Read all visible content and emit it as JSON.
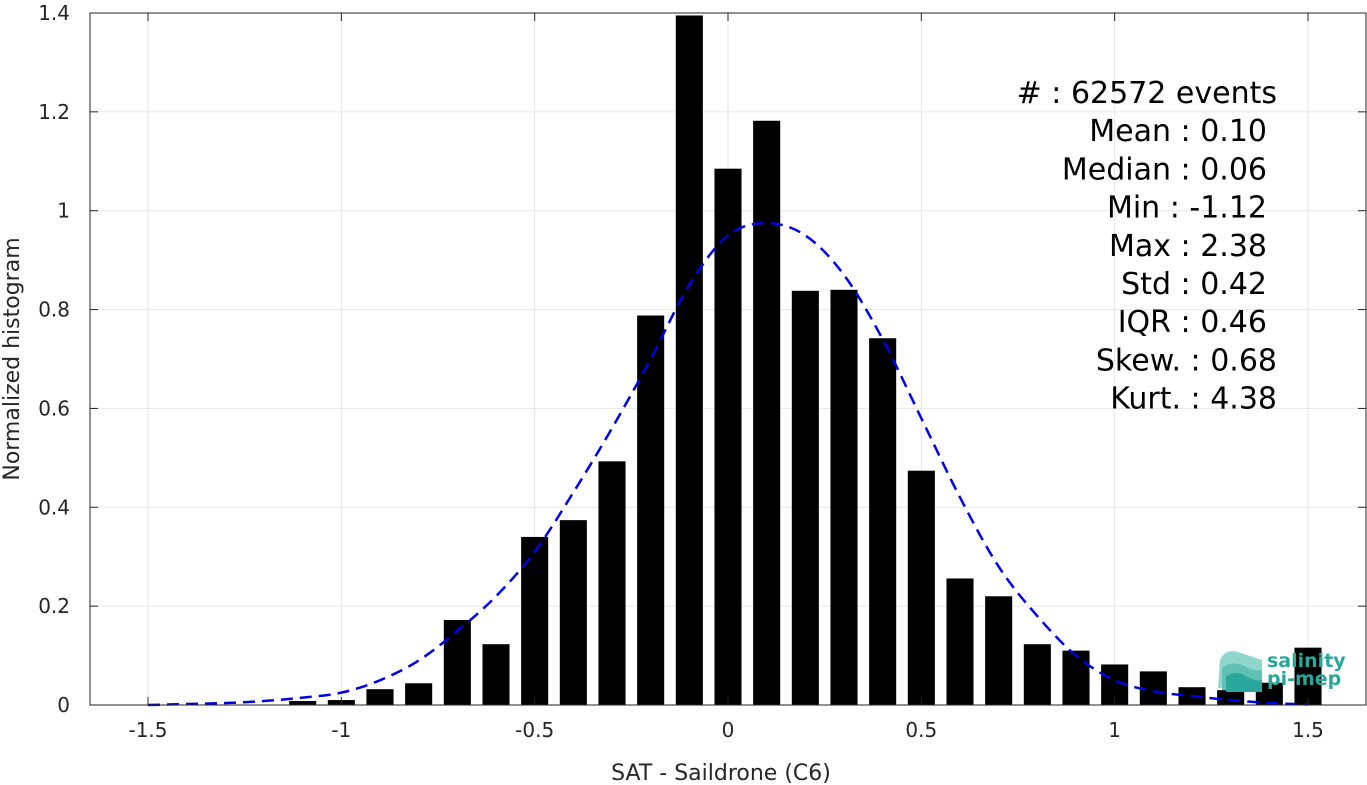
{
  "chart_data": {
    "type": "bar",
    "xlabel": "SAT - Saildrone (C6)",
    "ylabel": "Normalized histogram",
    "xlim": [
      -1.65,
      1.65
    ],
    "ylim": [
      0,
      1.4
    ],
    "grid": true,
    "x_ticks": [
      "-1.5",
      "-1",
      "-0.5",
      "0",
      "0.5",
      "1",
      "1.5"
    ],
    "x_tick_values": [
      -1.5,
      -1,
      -0.5,
      0,
      0.5,
      1,
      1.5
    ],
    "y_ticks": [
      "0",
      "0.2",
      "0.4",
      "0.6",
      "0.8",
      "1",
      "1.2",
      "1.4"
    ],
    "y_tick_values": [
      0,
      0.2,
      0.4,
      0.6,
      0.8,
      1.0,
      1.2,
      1.4
    ],
    "bar_width": 0.07,
    "bars": {
      "x": [
        -1.1,
        -1.0,
        -0.9,
        -0.8,
        -0.7,
        -0.6,
        -0.5,
        -0.4,
        -0.3,
        -0.2,
        -0.1,
        0.0,
        0.1,
        0.2,
        0.3,
        0.4,
        0.5,
        0.6,
        0.7,
        0.8,
        0.9,
        1.0,
        1.1,
        1.2,
        1.3,
        1.4,
        1.5
      ],
      "values": [
        0.008,
        0.01,
        0.032,
        0.044,
        0.172,
        0.123,
        0.34,
        0.374,
        0.493,
        0.788,
        1.395,
        1.085,
        1.182,
        0.838,
        0.84,
        0.742,
        0.474,
        0.256,
        0.22,
        0.123,
        0.11,
        0.082,
        0.068,
        0.036,
        0.03,
        0.045,
        0.116
      ],
      "color": "#000000"
    },
    "fit_curve": {
      "style": "dashed",
      "color": "#0000e6",
      "x": [
        -1.5,
        -1.4,
        -1.3,
        -1.2,
        -1.1,
        -1.0,
        -0.9,
        -0.8,
        -0.7,
        -0.6,
        -0.5,
        -0.4,
        -0.3,
        -0.2,
        -0.1,
        0.0,
        0.1,
        0.2,
        0.3,
        0.4,
        0.5,
        0.6,
        0.7,
        0.8,
        0.9,
        1.0,
        1.1,
        1.2,
        1.3,
        1.4,
        1.5
      ],
      "y": [
        0.0,
        0.002,
        0.004,
        0.008,
        0.015,
        0.025,
        0.05,
        0.09,
        0.15,
        0.22,
        0.31,
        0.43,
        0.56,
        0.7,
        0.85,
        0.95,
        0.975,
        0.95,
        0.87,
        0.74,
        0.58,
        0.42,
        0.28,
        0.18,
        0.1,
        0.05,
        0.028,
        0.018,
        0.01,
        0.004,
        0.001
      ]
    }
  },
  "stats": [
    {
      "label": "#  : 62572 events",
      "anchor": "end",
      "offset": 10
    },
    {
      "label": "Mean : 0.10",
      "anchor": "end",
      "offset": 0
    },
    {
      "label": "Median : 0.06",
      "anchor": "end",
      "offset": 0
    },
    {
      "label": "Min : -1.12",
      "anchor": "end",
      "offset": 0
    },
    {
      "label": "Max : 2.38",
      "anchor": "end",
      "offset": 0
    },
    {
      "label": "Std : 0.42",
      "anchor": "end",
      "offset": 0
    },
    {
      "label": "IQR : 0.46",
      "anchor": "end",
      "offset": 0
    },
    {
      "label": "Skew. : 0.68",
      "anchor": "end",
      "offset": 10
    },
    {
      "label": "Kurt. : 4.38",
      "anchor": "end",
      "offset": 10
    }
  ],
  "logo": {
    "line1": "salinity",
    "line2": "pi-mep",
    "color": "#2aa79b"
  }
}
